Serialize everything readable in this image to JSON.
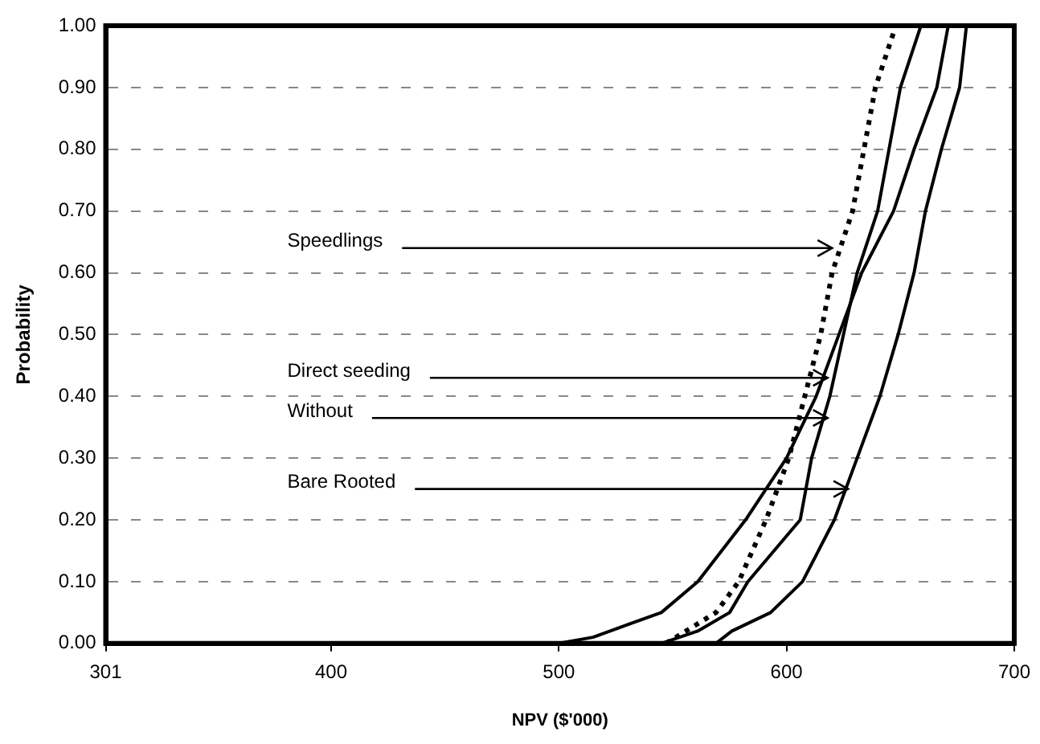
{
  "chart_data": {
    "type": "line",
    "xlabel": "NPV ($'000)",
    "ylabel": "Probability",
    "xlim": [
      301,
      700
    ],
    "xticks": [
      301,
      400,
      500,
      600,
      700
    ],
    "ylim": [
      0,
      1
    ],
    "yticks": [
      {
        "value": 0,
        "label": "0.00"
      },
      {
        "value": 0.1,
        "label": "0.10"
      },
      {
        "value": 0.2,
        "label": "0.20"
      },
      {
        "value": 0.3,
        "label": "0.30"
      },
      {
        "value": 0.4,
        "label": "0.40"
      },
      {
        "value": 0.5,
        "label": "0.50"
      },
      {
        "value": 0.6,
        "label": "0.60"
      },
      {
        "value": 0.7,
        "label": "0.70"
      },
      {
        "value": 0.8,
        "label": "0.80"
      },
      {
        "value": 0.9,
        "label": "0.90"
      },
      {
        "value": 1,
        "label": "1.00"
      }
    ],
    "grid": "y",
    "legend": false,
    "marker": "none",
    "series": [
      {
        "color": "#000000",
        "line_style": "dotted",
        "x": [
          547,
          569,
          579,
          591,
          601,
          608,
          615,
          620,
          629,
          634,
          639,
          648
        ],
        "values": [
          0,
          0.05,
          0.1,
          0.2,
          0.3,
          0.4,
          0.5,
          0.6,
          0.7,
          0.8,
          0.9,
          1
        ]
      },
      {
        "color": "#000000",
        "line_style": "solid",
        "x": [
          500,
          515,
          530,
          545,
          561,
          582,
          600,
          613,
          623,
          633,
          647,
          656,
          666,
          671
        ],
        "values": [
          0,
          0.01,
          0.03,
          0.05,
          0.1,
          0.2,
          0.3,
          0.4,
          0.5,
          0.6,
          0.7,
          0.8,
          0.9,
          1
        ]
      },
      {
        "color": "#000000",
        "line_style": "solid",
        "x": [
          545,
          561,
          575,
          583,
          606,
          611,
          619,
          625,
          631,
          640,
          645,
          650,
          659
        ],
        "values": [
          0,
          0.02,
          0.05,
          0.1,
          0.2,
          0.3,
          0.4,
          0.5,
          0.6,
          0.7,
          0.8,
          0.9,
          1
        ]
      },
      {
        "color": "#000000",
        "line_style": "solid",
        "x": [
          569,
          576,
          593,
          607,
          621,
          631,
          641,
          649,
          656,
          661,
          668,
          676,
          679
        ],
        "values": [
          0,
          0.02,
          0.05,
          0.1,
          0.2,
          0.3,
          0.4,
          0.5,
          0.6,
          0.7,
          0.8,
          0.9,
          1
        ]
      }
    ],
    "annotations": [
      {
        "text": "Speedlings",
        "x": 620,
        "y": 0.64
      },
      {
        "text": "Direct seeding",
        "x": 618,
        "y": 0.43
      },
      {
        "text": "Without",
        "x": 618,
        "y": 0.365
      },
      {
        "text": "Bare Rooted",
        "x": 627,
        "y": 0.25
      }
    ]
  }
}
